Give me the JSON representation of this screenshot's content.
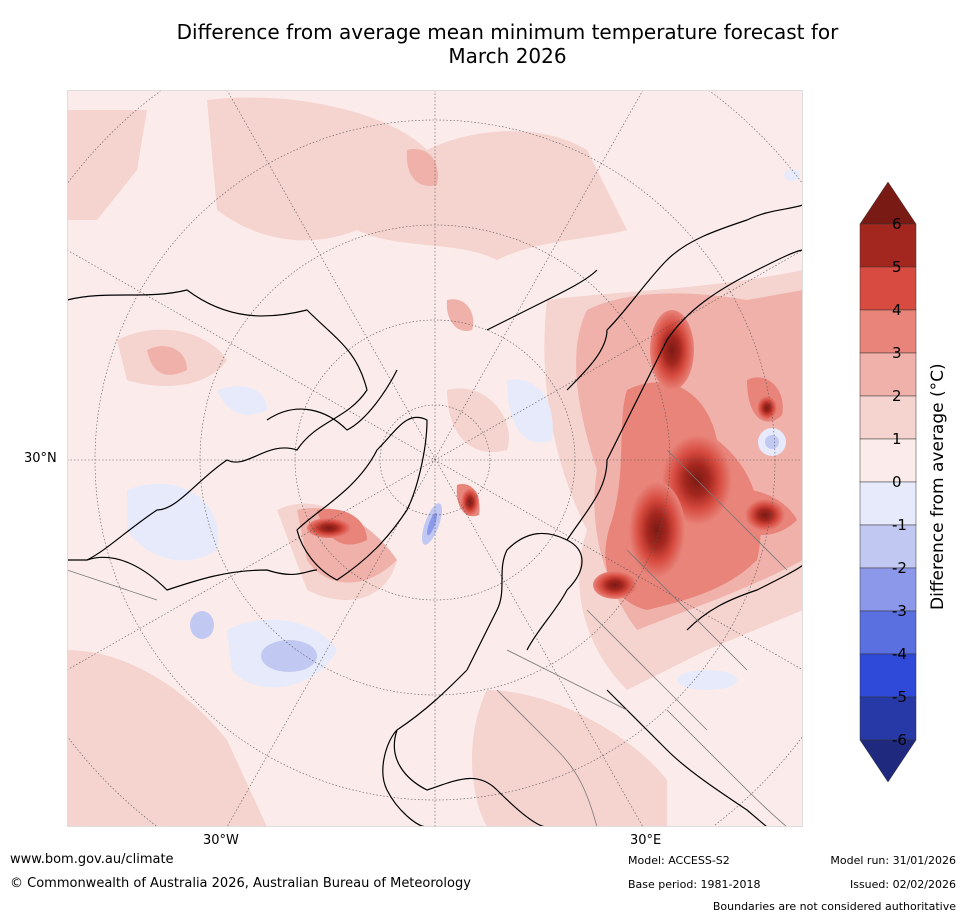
{
  "title_line1": "Difference from average mean minimum temperature forecast for",
  "title_line2": "March 2026",
  "map": {
    "lat_label": "30°N",
    "lon_label_west": "30°W",
    "lon_label_east": "30°E"
  },
  "legend": {
    "title": "Difference from average (°C)",
    "ticks": [
      "6",
      "5",
      "4",
      "3",
      "2",
      "1",
      "0",
      "-1",
      "-2",
      "-3",
      "-4",
      "-5",
      "-6"
    ],
    "colors": {
      "over": "#7a1a14",
      "5_6": "#a4271f",
      "4_5": "#d74b40",
      "3_4": "#e8847a",
      "2_3": "#efb1aa",
      "1_2": "#f5d3cf",
      "0_1": "#fbeceb",
      "m1_0": "#e7eafa",
      "m2_m1": "#c1c8f2",
      "m3_m2": "#8c99ea",
      "m4_m3": "#5a6fe0",
      "m5_m4": "#2f4ad9",
      "m6_m5": "#2639a6",
      "under": "#1f2a7e"
    }
  },
  "footer": {
    "website": "www.bom.gov.au/climate",
    "copyright": "© Commonwealth of Australia 2026, Australian Bureau of Meteorology",
    "model": "Model: ACCESS-S2",
    "base_period": "Base period: 1981-2018",
    "model_run": "Model run: 31/01/2026",
    "issued": "Issued: 02/02/2026",
    "disclaimer": "Boundaries are not considered authoritative"
  }
}
